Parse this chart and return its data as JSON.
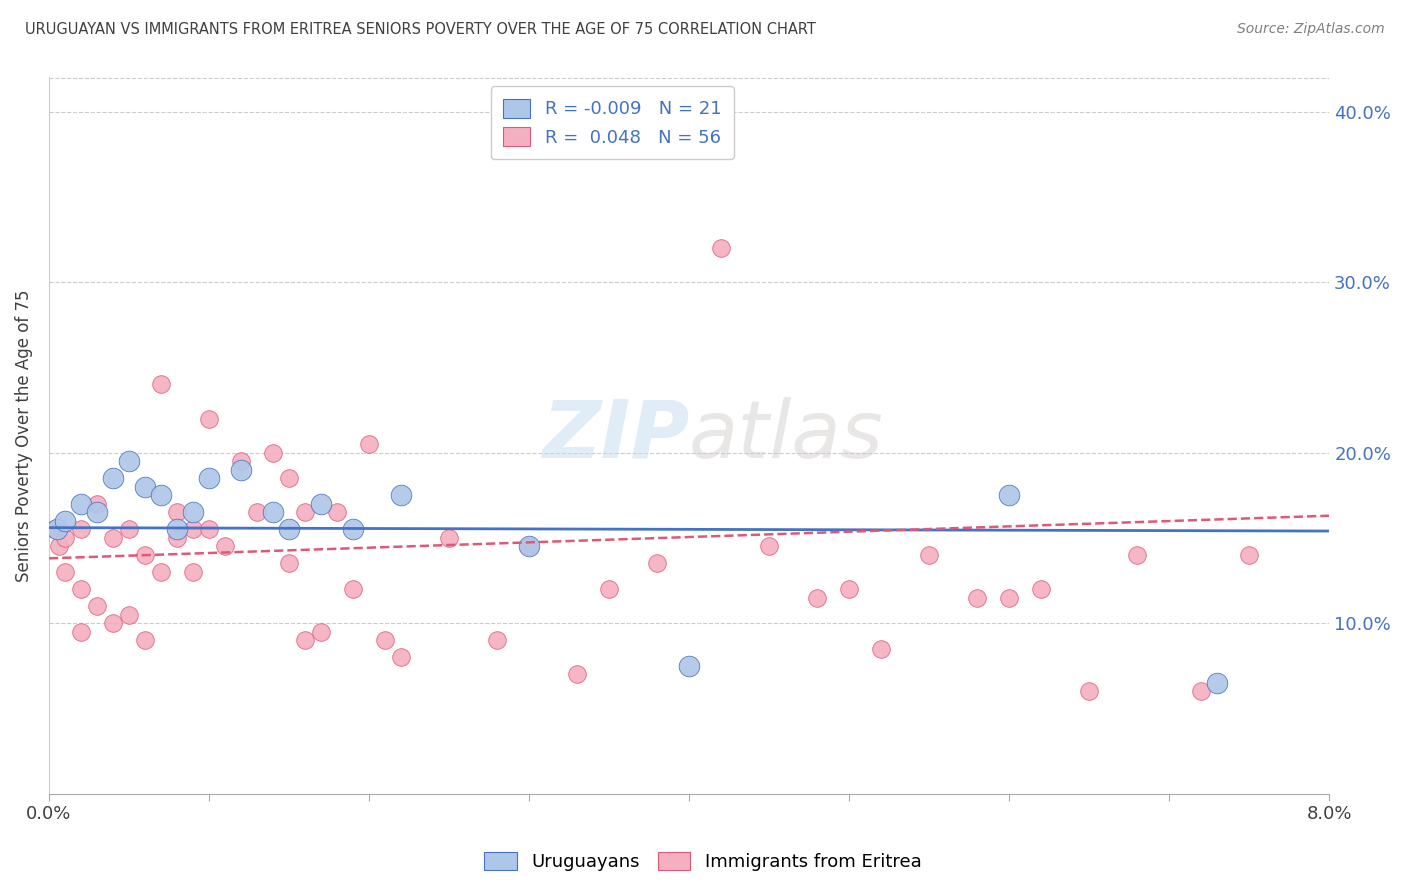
{
  "title": "URUGUAYAN VS IMMIGRANTS FROM ERITREA SENIORS POVERTY OVER THE AGE OF 75 CORRELATION CHART",
  "source": "Source: ZipAtlas.com",
  "ylabel": "Seniors Poverty Over the Age of 75",
  "xmin": 0.0,
  "xmax": 0.08,
  "ymin": 0.0,
  "ymax": 0.42,
  "yticks": [
    0.1,
    0.2,
    0.3,
    0.4
  ],
  "ytick_labels": [
    "10.0%",
    "20.0%",
    "30.0%",
    "40.0%"
  ],
  "xticks": [
    0.0,
    0.01,
    0.02,
    0.03,
    0.04,
    0.05,
    0.06,
    0.07,
    0.08
  ],
  "legend_labels": [
    "Uruguayans",
    "Immigrants from Eritrea"
  ],
  "R_uruguayan": -0.009,
  "N_uruguayan": 21,
  "R_eritrea": 0.048,
  "N_eritrea": 56,
  "color_uruguayan": "#aec6e8",
  "color_eritrea": "#f4afc0",
  "trend_color_uruguayan": "#4472c4",
  "trend_color_eritrea": "#e05878",
  "background_color": "#ffffff",
  "grid_color": "#cccccc",
  "title_color": "#404040",
  "source_color": "#808080",
  "axis_color": "#4472c4",
  "uruguayan_x": [
    0.0005,
    0.001,
    0.002,
    0.003,
    0.004,
    0.005,
    0.006,
    0.007,
    0.008,
    0.009,
    0.01,
    0.012,
    0.014,
    0.015,
    0.017,
    0.019,
    0.022,
    0.03,
    0.04,
    0.06,
    0.073
  ],
  "uruguayan_y": [
    0.155,
    0.16,
    0.17,
    0.165,
    0.185,
    0.195,
    0.18,
    0.175,
    0.155,
    0.165,
    0.185,
    0.19,
    0.165,
    0.155,
    0.17,
    0.155,
    0.175,
    0.145,
    0.075,
    0.175,
    0.065
  ],
  "eritrea_x": [
    0.0003,
    0.0006,
    0.001,
    0.001,
    0.002,
    0.002,
    0.002,
    0.003,
    0.003,
    0.004,
    0.004,
    0.005,
    0.005,
    0.006,
    0.006,
    0.007,
    0.007,
    0.008,
    0.008,
    0.009,
    0.009,
    0.01,
    0.01,
    0.011,
    0.012,
    0.013,
    0.014,
    0.015,
    0.015,
    0.016,
    0.016,
    0.017,
    0.018,
    0.019,
    0.02,
    0.021,
    0.022,
    0.025,
    0.028,
    0.03,
    0.033,
    0.035,
    0.038,
    0.042,
    0.045,
    0.048,
    0.05,
    0.052,
    0.055,
    0.058,
    0.06,
    0.062,
    0.065,
    0.068,
    0.072,
    0.075
  ],
  "eritrea_y": [
    0.155,
    0.145,
    0.15,
    0.13,
    0.155,
    0.095,
    0.12,
    0.17,
    0.11,
    0.15,
    0.1,
    0.155,
    0.105,
    0.14,
    0.09,
    0.24,
    0.13,
    0.165,
    0.15,
    0.155,
    0.13,
    0.22,
    0.155,
    0.145,
    0.195,
    0.165,
    0.2,
    0.185,
    0.135,
    0.165,
    0.09,
    0.095,
    0.165,
    0.12,
    0.205,
    0.09,
    0.08,
    0.15,
    0.09,
    0.145,
    0.07,
    0.12,
    0.135,
    0.32,
    0.145,
    0.115,
    0.12,
    0.085,
    0.14,
    0.115,
    0.115,
    0.12,
    0.06,
    0.14,
    0.06,
    0.14
  ],
  "dot_size_uruguayan": 220,
  "dot_size_eritrea": 160
}
